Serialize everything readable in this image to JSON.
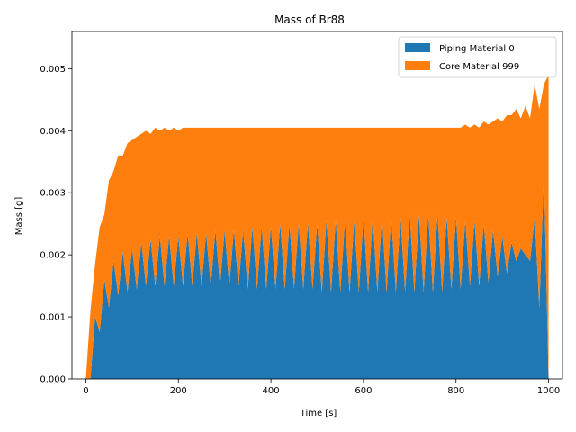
{
  "chart_data": {
    "type": "area",
    "stacked": true,
    "title": "Mass of Br88",
    "xlabel": "Time [s]",
    "ylabel": "Mass [g]",
    "xlim": [
      -30,
      1030
    ],
    "ylim": [
      0,
      0.0056
    ],
    "xticks": [
      0,
      200,
      400,
      600,
      800,
      1000
    ],
    "yticks": [
      0.0,
      0.001,
      0.002,
      0.003,
      0.004,
      0.005
    ],
    "ytick_labels": [
      "0.000",
      "0.001",
      "0.002",
      "0.003",
      "0.004",
      "0.005"
    ],
    "legend": {
      "position": "top-right"
    },
    "x": [
      0,
      10,
      20,
      30,
      40,
      50,
      60,
      70,
      80,
      90,
      100,
      110,
      120,
      130,
      140,
      150,
      160,
      170,
      180,
      190,
      200,
      210,
      220,
      230,
      240,
      250,
      260,
      270,
      280,
      290,
      300,
      310,
      320,
      330,
      340,
      350,
      360,
      370,
      380,
      390,
      400,
      410,
      420,
      430,
      440,
      450,
      460,
      470,
      480,
      490,
      500,
      510,
      520,
      530,
      540,
      550,
      560,
      570,
      580,
      590,
      600,
      610,
      620,
      630,
      640,
      650,
      660,
      670,
      680,
      690,
      700,
      710,
      720,
      730,
      740,
      750,
      760,
      770,
      780,
      790,
      800,
      810,
      820,
      830,
      840,
      850,
      860,
      870,
      880,
      890,
      900,
      910,
      920,
      930,
      940,
      950,
      960,
      970,
      980,
      990,
      1000
    ],
    "series": [
      {
        "name": "Piping Material 0",
        "color": "#1f77b4",
        "values": [
          0.0,
          0.0,
          0.001,
          0.00075,
          0.0016,
          0.00115,
          0.0019,
          0.00135,
          0.00205,
          0.0014,
          0.0021,
          0.00145,
          0.0022,
          0.0015,
          0.00225,
          0.0015,
          0.0023,
          0.0015,
          0.0023,
          0.0015,
          0.0023,
          0.0015,
          0.00235,
          0.0015,
          0.00235,
          0.0015,
          0.00235,
          0.0015,
          0.0024,
          0.0015,
          0.0024,
          0.0015,
          0.0024,
          0.0015,
          0.0024,
          0.00145,
          0.00245,
          0.00145,
          0.00245,
          0.00145,
          0.00245,
          0.00145,
          0.0025,
          0.00145,
          0.0025,
          0.00145,
          0.0025,
          0.00145,
          0.0025,
          0.00145,
          0.0025,
          0.0014,
          0.00255,
          0.0014,
          0.00255,
          0.0014,
          0.00255,
          0.0014,
          0.00255,
          0.0014,
          0.0026,
          0.0014,
          0.0026,
          0.0014,
          0.0026,
          0.0014,
          0.0026,
          0.0014,
          0.0026,
          0.0014,
          0.00265,
          0.0014,
          0.00265,
          0.0014,
          0.00265,
          0.0014,
          0.00265,
          0.0014,
          0.0026,
          0.00145,
          0.0026,
          0.00145,
          0.00255,
          0.0015,
          0.00255,
          0.0015,
          0.0025,
          0.00155,
          0.0024,
          0.00165,
          0.0023,
          0.0017,
          0.0022,
          0.0019,
          0.0021,
          0.002,
          0.0019,
          0.0026,
          0.00115,
          0.0033,
          0.0
        ]
      },
      {
        "name": "Core Material 999",
        "color": "#ff7f0e",
        "values": [
          0.0,
          0.0011,
          0.00085,
          0.0017,
          0.00105,
          0.00205,
          0.00145,
          0.00225,
          0.00155,
          0.0024,
          0.00175,
          0.00245,
          0.00175,
          0.0025,
          0.0017,
          0.00255,
          0.0017,
          0.00255,
          0.0017,
          0.00255,
          0.0017,
          0.00255,
          0.0017,
          0.00255,
          0.0017,
          0.00255,
          0.0017,
          0.00255,
          0.00165,
          0.00255,
          0.00165,
          0.00255,
          0.00165,
          0.00255,
          0.00165,
          0.0026,
          0.0016,
          0.0026,
          0.0016,
          0.0026,
          0.0016,
          0.0026,
          0.00155,
          0.0026,
          0.00155,
          0.0026,
          0.00155,
          0.0026,
          0.00155,
          0.0026,
          0.00155,
          0.00265,
          0.0015,
          0.00265,
          0.0015,
          0.00265,
          0.0015,
          0.00265,
          0.0015,
          0.00265,
          0.00145,
          0.00265,
          0.00145,
          0.00265,
          0.00145,
          0.00265,
          0.00145,
          0.00265,
          0.00145,
          0.00265,
          0.0014,
          0.00265,
          0.0014,
          0.00265,
          0.0014,
          0.00265,
          0.0014,
          0.00265,
          0.00145,
          0.0026,
          0.00145,
          0.0026,
          0.00155,
          0.00255,
          0.00155,
          0.00255,
          0.00165,
          0.00255,
          0.00175,
          0.00255,
          0.00185,
          0.00255,
          0.00205,
          0.00245,
          0.0021,
          0.0024,
          0.0023,
          0.00215,
          0.0032,
          0.00145,
          0.0049
        ]
      }
    ]
  }
}
